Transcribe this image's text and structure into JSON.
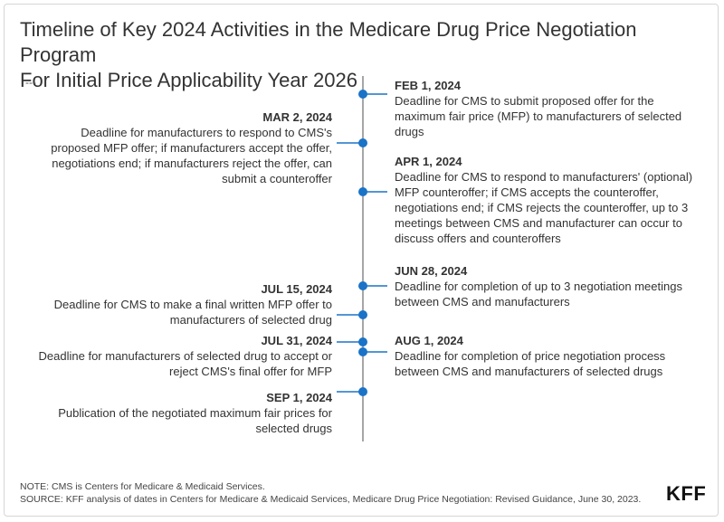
{
  "title_line1": "Timeline of Key 2024 Activities in the Medicare Drug Price Negotiation Program",
  "title_line2": "For Initial Price Applicability Year 2026",
  "subtitle": "---",
  "events": [
    {
      "date": "FEB 1, 2024",
      "text": "Deadline for CMS to submit proposed offer for the maximum fair price (MFP) to manufacturers of selected drugs",
      "side": "right"
    },
    {
      "date": "MAR 2, 2024",
      "text": "Deadline for manufacturers to respond to CMS's proposed MFP offer; if manufacturers accept the offer, negotiations end; if manufacturers reject the offer, can submit a counteroffer",
      "side": "left"
    },
    {
      "date": "APR 1, 2024",
      "text": "Deadline for CMS to respond to manufacturers' (optional) MFP counteroffer; if CMS accepts the counteroffer, negotiations end; if CMS rejects the counteroffer, up to 3 meetings between CMS and manufacturer can occur to discuss offers and counteroffers",
      "side": "right"
    },
    {
      "date": "JUN 28, 2024",
      "text": "Deadline for completion of up to 3 negotiation meetings between CMS and manufacturers",
      "side": "right"
    },
    {
      "date": "JUL 15, 2024",
      "text": "Deadline for CMS to make a final written MFP offer to manufacturers of selected drug",
      "side": "left"
    },
    {
      "date": "JUL 31, 2024",
      "text": "Deadline for manufacturers of selected drug to accept or reject CMS's final offer for MFP",
      "side": "left"
    },
    {
      "date": "AUG 1, 2024",
      "text": "Deadline for completion of price negotiation process between CMS and manufacturers of selected drugs",
      "side": "right"
    },
    {
      "date": "SEP 1, 2024",
      "text": "Publication of the negotiated maximum fair prices for selected drugs",
      "side": "left"
    }
  ],
  "note": "NOTE: CMS is Centers for Medicare & Medicaid Services.",
  "source": "SOURCE: KFF analysis of dates in Centers for Medicare & Medicaid Services, Medicare Drug Price Negotiation: Revised Guidance, June 30, 2023.",
  "logo": "KFF",
  "colors": {
    "accent": "#1a73c7",
    "axis": "#888888"
  }
}
